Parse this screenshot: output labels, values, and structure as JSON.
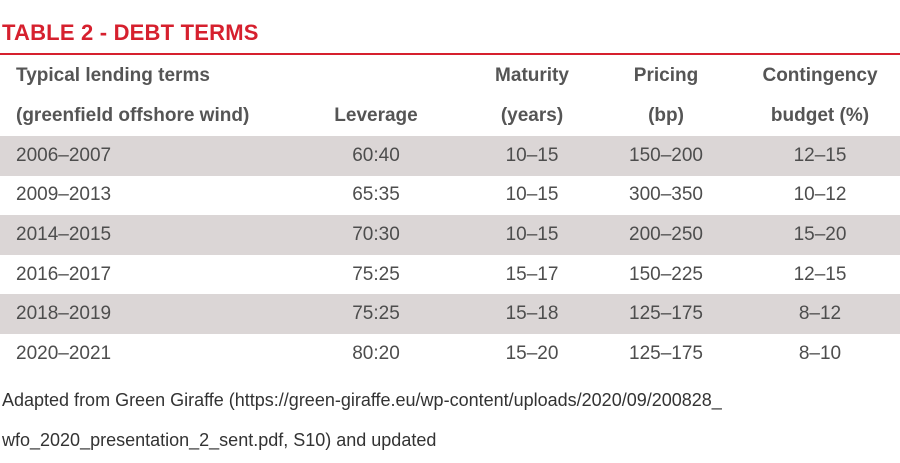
{
  "table": {
    "title": "TABLE 2 - DEBT TERMS",
    "header": {
      "row1": [
        "Typical lending terms",
        "",
        "Maturity",
        "Pricing",
        "Contingency"
      ],
      "row2": [
        "(greenfield offshore wind)",
        "Leverage",
        "(years)",
        "(bp)",
        "budget (%)"
      ]
    },
    "rows": [
      [
        "2006–2007",
        "60:40",
        "10–15",
        "150–200",
        "12–15"
      ],
      [
        "2009–2013",
        "65:35",
        "10–15",
        "300–350",
        "10–12"
      ],
      [
        "2014–2015",
        "70:30",
        "10–15",
        "200–250",
        "15–20"
      ],
      [
        "2016–2017",
        "75:25",
        "15–17",
        "150–225",
        "12–15"
      ],
      [
        "2018–2019",
        "75:25",
        "15–18",
        "125–175",
        "8–12"
      ],
      [
        "2020–2021",
        "80:20",
        "15–20",
        "125–175",
        "8–10"
      ]
    ],
    "source": {
      "line1": "Adapted from Green Giraffe (https://green-giraffe.eu/wp-content/uploads/2020/09/200828_",
      "line2": "wfo_2020_presentation_2_sent.pdf, S10) and updated"
    }
  },
  "colors": {
    "accent": "#d6202e",
    "row_shade": "#dbd6d6"
  }
}
